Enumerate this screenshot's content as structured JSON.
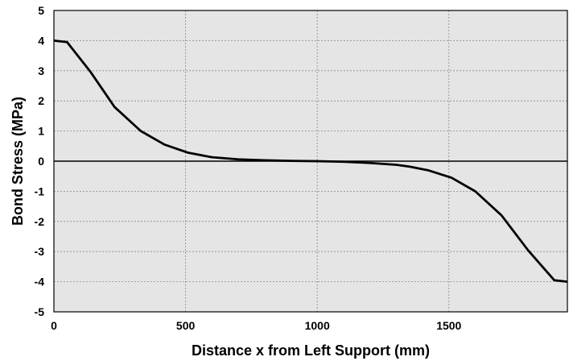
{
  "chart_data": {
    "type": "line",
    "title": "",
    "xlabel": "Distance x from Left Support (mm)",
    "ylabel": "Bond Stress (MPa)",
    "xlim": [
      0,
      1950
    ],
    "ylim": [
      -5,
      5
    ],
    "x_ticks": [
      0,
      500,
      1000,
      1500
    ],
    "x_tick_labels": [
      "0",
      "500",
      "1000",
      "1500"
    ],
    "y_ticks": [
      5,
      4,
      3,
      2,
      1,
      0,
      -1,
      -2,
      -3,
      -4,
      -5
    ],
    "y_tick_labels": [
      "5",
      "4",
      "3",
      "2",
      "1",
      "0",
      "-1",
      "-2",
      "-3",
      "-4",
      "-5"
    ],
    "grid": true,
    "legend": "none",
    "colors": {
      "plot_background": "#e5e5e5",
      "grid": "#888888",
      "line": "#000000"
    },
    "series": [
      {
        "x": [
          0,
          50,
          140,
          230,
          330,
          420,
          510,
          600,
          700,
          800,
          900,
          1000,
          1050,
          1100,
          1150,
          1200,
          1250,
          1300,
          1350,
          1420,
          1510,
          1600,
          1700,
          1800,
          1900,
          1950
        ],
        "values": [
          4.0,
          3.95,
          2.95,
          1.8,
          1.0,
          0.55,
          0.28,
          0.13,
          0.06,
          0.03,
          0.01,
          0.0,
          -0.01,
          -0.02,
          -0.04,
          -0.06,
          -0.09,
          -0.12,
          -0.18,
          -0.3,
          -0.55,
          -1.0,
          -1.8,
          -2.95,
          -3.95,
          -4.0
        ]
      }
    ]
  }
}
